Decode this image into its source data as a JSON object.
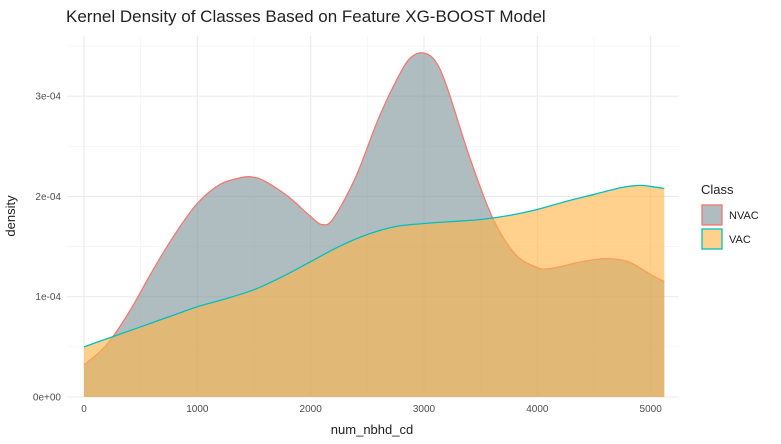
{
  "chart_data": {
    "type": "area",
    "title": "Kernel Density of Classes Based on Feature XG-BOOST Model",
    "xlabel": "num_nbhd_cd",
    "ylabel": "density",
    "xlim": [
      -150,
      5250
    ],
    "ylim": [
      0,
      0.00036
    ],
    "x_ticks": [
      0,
      1000,
      2000,
      3000,
      4000,
      5000
    ],
    "x_tick_labels": [
      "0",
      "1000",
      "2000",
      "3000",
      "4000",
      "5000"
    ],
    "y_ticks": [
      0,
      0.0001,
      0.0002,
      0.0003
    ],
    "y_tick_labels": [
      "0e+00",
      "1e-04",
      "2e-04",
      "3e-04"
    ],
    "grid": true,
    "legend": {
      "title": "Class",
      "position": "right"
    },
    "series": [
      {
        "name": "NVAC",
        "line_color": "#F8766D",
        "fill_color": "#7F9599",
        "x": [
          0,
          200,
          400,
          600,
          800,
          1000,
          1200,
          1400,
          1500,
          1600,
          1800,
          2000,
          2100,
          2200,
          2400,
          2600,
          2800,
          2900,
          3000,
          3100,
          3200,
          3400,
          3600,
          3800,
          4000,
          4100,
          4200,
          4400,
          4600,
          4800,
          5000,
          5120
        ],
        "y": [
          3.2e-05,
          5.2e-05,
          8.5e-05,
          0.000125,
          0.000162,
          0.000193,
          0.000212,
          0.000219,
          0.000219,
          0.000215,
          0.0002,
          0.00018,
          0.000172,
          0.000178,
          0.00022,
          0.000278,
          0.000325,
          0.00034,
          0.000343,
          0.000335,
          0.00031,
          0.00024,
          0.00018,
          0.000143,
          0.000129,
          0.000128,
          0.00013,
          0.000135,
          0.000138,
          0.000135,
          0.000122,
          0.000115
        ]
      },
      {
        "name": "VAC",
        "line_color": "#00BFC4",
        "fill_color": "#FFB547",
        "x": [
          0,
          250,
          500,
          750,
          1000,
          1250,
          1500,
          1750,
          2000,
          2250,
          2500,
          2750,
          3000,
          3250,
          3500,
          3750,
          4000,
          4250,
          4500,
          4750,
          4900,
          5000,
          5120
        ],
        "y": [
          5e-05,
          6e-05,
          7e-05,
          8e-05,
          9e-05,
          9.8e-05,
          0.000107,
          0.00012,
          0.000135,
          0.00015,
          0.000162,
          0.00017,
          0.000173,
          0.000175,
          0.000177,
          0.000181,
          0.000187,
          0.000195,
          0.000202,
          0.000209,
          0.000211,
          0.00021,
          0.000208
        ]
      }
    ]
  }
}
